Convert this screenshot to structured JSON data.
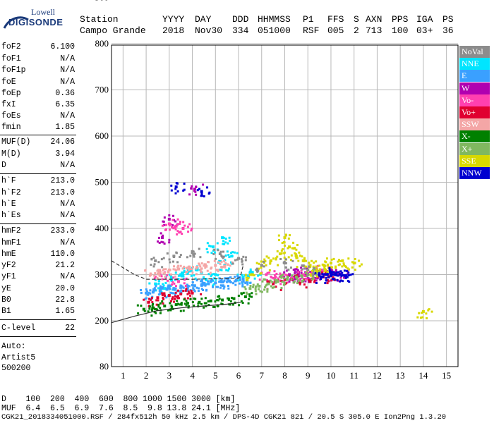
{
  "logo": {
    "line1": "Lowell",
    "line2": "DIGISONDE"
  },
  "header": {
    "labels": [
      "Station",
      "YYYY",
      "DAY",
      "DDD",
      "HHMMSS",
      "P1",
      "FFS",
      "S",
      "AXN",
      "PPS",
      "IGA",
      "PS"
    ],
    "values": [
      "Campo Grande",
      "2018",
      "Nov30",
      "334",
      "051000",
      "RSF",
      "005",
      "2",
      "713",
      "100",
      "03+",
      "36"
    ]
  },
  "params": [
    {
      "name": "foF2",
      "value": "6.100"
    },
    {
      "name": "foF1",
      "value": "N/A"
    },
    {
      "name": "foF1p",
      "value": "N/A"
    },
    {
      "name": "foE",
      "value": "N/A"
    },
    {
      "name": "foEp",
      "value": "0.36"
    },
    {
      "name": "fxI",
      "value": "6.35"
    },
    {
      "name": "foEs",
      "value": "N/A"
    },
    {
      "name": "fmin",
      "value": "1.85"
    },
    {
      "name": "MUF(D)",
      "value": "24.06"
    },
    {
      "name": "M(D)",
      "value": "3.94"
    },
    {
      "name": "D",
      "value": "N/A"
    },
    {
      "name": "h`F",
      "value": "213.0"
    },
    {
      "name": "h`F2",
      "value": "213.0"
    },
    {
      "name": "h`E",
      "value": "N/A"
    },
    {
      "name": "h`Es",
      "value": "N/A"
    },
    {
      "name": "hmF2",
      "value": "233.0"
    },
    {
      "name": "hmF1",
      "value": "N/A"
    },
    {
      "name": "hmE",
      "value": "110.0"
    },
    {
      "name": "yF2",
      "value": "21.2"
    },
    {
      "name": "yF1",
      "value": "N/A"
    },
    {
      "name": "yE",
      "value": "20.0"
    },
    {
      "name": "B0",
      "value": "22.8"
    },
    {
      "name": "B1",
      "value": "1.65"
    },
    {
      "name": "C-level",
      "value": "22"
    }
  ],
  "auto": {
    "l1": "Auto:",
    "l2": "Artist5",
    "l3": "500200"
  },
  "legend": [
    {
      "label": "NoVal",
      "color": "#8c8c8c"
    },
    {
      "label": "NNE",
      "color": "#00e5ff"
    },
    {
      "label": "E",
      "color": "#3aa0ff"
    },
    {
      "label": "W",
      "color": "#b000b0"
    },
    {
      "label": "Vo-",
      "color": "#ff40b0"
    },
    {
      "label": "Vo+",
      "color": "#e00030"
    },
    {
      "label": "SSW",
      "color": "#f4a6a6"
    },
    {
      "label": "X-",
      "color": "#008000"
    },
    {
      "label": "X+",
      "color": "#80b860"
    },
    {
      "label": "SSE",
      "color": "#d8d800"
    },
    {
      "label": "NNW",
      "color": "#0000d0"
    }
  ],
  "footer": {
    "line1": "D    100  200  400  600  800 1000 1500 3000 [km]",
    "line2": "MUF  6.4  6.5  6.9  7.6  8.5  9.8 13.8 24.1 [MHz]",
    "line3": "CGK21_2018334051000.RSF / 284fx512h 50 kHz 2.5 km / DPS-4D CGK21 821 / 20.5 S 305.0 E Ion2Png 1.3.20"
  },
  "chart_data": {
    "type": "scatter",
    "title": "",
    "xlabel": "",
    "ylabel": "",
    "xlim": [
      0.5,
      15.5
    ],
    "ylim": [
      80,
      900
    ],
    "xticks": [
      1,
      2,
      3,
      4,
      5,
      6,
      7,
      8,
      9,
      10,
      11,
      12,
      13,
      14,
      15
    ],
    "yticks": [
      80,
      200,
      300,
      400,
      500,
      600,
      700,
      800,
      900
    ],
    "grid": true,
    "legend_position": "right",
    "series": [
      {
        "name": "NNE",
        "color": "#00e5ff",
        "points": [
          [
            3.5,
            300
          ],
          [
            3.8,
            305
          ],
          [
            4.2,
            310
          ],
          [
            4.6,
            290
          ],
          [
            5.0,
            300
          ],
          [
            5.4,
            320
          ],
          [
            5.7,
            340
          ],
          [
            4.9,
            360
          ],
          [
            5.3,
            380
          ],
          [
            2.4,
            280
          ],
          [
            2.8,
            270
          ],
          [
            3.1,
            290
          ],
          [
            6.2,
            295
          ],
          [
            6.6,
            305
          ]
        ]
      },
      {
        "name": "E",
        "color": "#3aa0ff",
        "points": [
          [
            2.0,
            260
          ],
          [
            2.3,
            262
          ],
          [
            2.6,
            265
          ],
          [
            2.9,
            268
          ],
          [
            3.2,
            270
          ],
          [
            3.5,
            272
          ],
          [
            3.8,
            275
          ],
          [
            4.1,
            276
          ],
          [
            4.4,
            278
          ],
          [
            4.7,
            280
          ],
          [
            5.0,
            282
          ],
          [
            5.3,
            284
          ],
          [
            5.6,
            286
          ],
          [
            5.9,
            288
          ],
          [
            6.2,
            290
          ]
        ]
      },
      {
        "name": "W",
        "color": "#b000b0",
        "points": [
          [
            8.2,
            300
          ],
          [
            8.4,
            295
          ],
          [
            8.6,
            305
          ],
          [
            8.9,
            298
          ],
          [
            9.2,
            300
          ],
          [
            9.5,
            302
          ],
          [
            9.8,
            300
          ],
          [
            10.1,
            303
          ],
          [
            10.4,
            301
          ],
          [
            4.1,
            485
          ],
          [
            3.0,
            420
          ],
          [
            2.7,
            380
          ]
        ]
      },
      {
        "name": "Vo-",
        "color": "#ff40b0",
        "points": [
          [
            3.0,
            410
          ],
          [
            3.3,
            405
          ],
          [
            3.6,
            400
          ],
          [
            2.6,
            300
          ],
          [
            3.4,
            285
          ],
          [
            7.2,
            300
          ],
          [
            7.6,
            295
          ],
          [
            8.0,
            290
          ],
          [
            8.8,
            300
          ],
          [
            9.6,
            310
          ]
        ]
      },
      {
        "name": "Vo+",
        "color": "#e00030",
        "points": [
          [
            2.1,
            240
          ],
          [
            2.5,
            250
          ],
          [
            3.0,
            255
          ],
          [
            3.5,
            258
          ],
          [
            4.0,
            260
          ],
          [
            7.5,
            280
          ],
          [
            8.3,
            290
          ],
          [
            9.1,
            285
          ],
          [
            9.9,
            295
          ]
        ]
      },
      {
        "name": "SSW",
        "color": "#f4a6a6",
        "points": [
          [
            2.2,
            300
          ],
          [
            2.6,
            305
          ],
          [
            3.0,
            310
          ],
          [
            3.4,
            312
          ],
          [
            3.8,
            314
          ],
          [
            4.2,
            316
          ],
          [
            4.6,
            318
          ],
          [
            5.0,
            320
          ],
          [
            5.4,
            318
          ]
        ]
      },
      {
        "name": "X-",
        "color": "#008000",
        "points": [
          [
            1.9,
            225
          ],
          [
            2.3,
            228
          ],
          [
            2.8,
            232
          ],
          [
            3.3,
            235
          ],
          [
            3.8,
            238
          ],
          [
            4.3,
            240
          ],
          [
            4.8,
            243
          ],
          [
            5.3,
            245
          ],
          [
            5.8,
            248
          ],
          [
            6.3,
            252
          ]
        ]
      },
      {
        "name": "X+",
        "color": "#80b860",
        "points": [
          [
            6.5,
            270
          ],
          [
            6.9,
            275
          ],
          [
            7.3,
            280
          ],
          [
            7.7,
            285
          ],
          [
            8.1,
            290
          ],
          [
            8.5,
            295
          ],
          [
            9.0,
            300
          ],
          [
            9.5,
            305
          ]
        ]
      },
      {
        "name": "SSE",
        "color": "#d8d800",
        "points": [
          [
            6.6,
            300
          ],
          [
            7.0,
            320
          ],
          [
            7.4,
            330
          ],
          [
            7.8,
            345
          ],
          [
            8.0,
            380
          ],
          [
            8.2,
            360
          ],
          [
            8.5,
            340
          ],
          [
            8.8,
            330
          ],
          [
            9.1,
            320
          ],
          [
            9.4,
            310
          ],
          [
            9.7,
            320
          ],
          [
            10.0,
            325
          ],
          [
            10.5,
            330
          ],
          [
            11.0,
            325
          ],
          [
            14.0,
            220
          ]
        ]
      },
      {
        "name": "NNW",
        "color": "#0000d0",
        "points": [
          [
            9.8,
            300
          ],
          [
            10.0,
            305
          ],
          [
            10.2,
            302
          ],
          [
            10.4,
            300
          ],
          [
            10.6,
            298
          ],
          [
            9.6,
            295
          ],
          [
            3.3,
            490
          ],
          [
            4.4,
            480
          ]
        ]
      },
      {
        "name": "NoVal",
        "color": "#8c8c8c",
        "points": [
          [
            2.4,
            330
          ],
          [
            3.2,
            340
          ],
          [
            4.0,
            350
          ],
          [
            5.2,
            345
          ],
          [
            6.0,
            335
          ],
          [
            7.0,
            320
          ],
          [
            8.0,
            325
          ],
          [
            9.0,
            310
          ]
        ]
      }
    ],
    "model_trace": {
      "upper": [
        [
          0.5,
          330
        ],
        [
          1.5,
          300
        ],
        [
          2.0,
          290
        ],
        [
          3.0,
          290
        ],
        [
          4.0,
          290
        ],
        [
          5.0,
          291
        ],
        [
          6.0,
          292
        ],
        [
          6.1,
          300
        ],
        [
          6.2,
          320
        ]
      ],
      "lower": [
        [
          0.5,
          195
        ],
        [
          1.5,
          210
        ],
        [
          2.5,
          222
        ],
        [
          3.5,
          228
        ],
        [
          4.5,
          232
        ],
        [
          5.5,
          236
        ],
        [
          6.1,
          240
        ]
      ]
    }
  }
}
